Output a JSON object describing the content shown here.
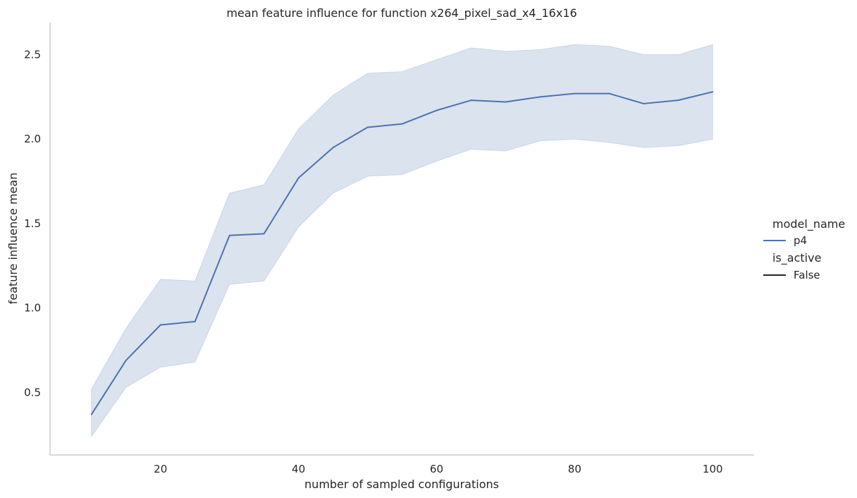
{
  "chart_data": {
    "type": "line",
    "title": "mean feature influence for function x264_pixel_sad_x4_16x16",
    "xlabel": "number of sampled configurations",
    "ylabel": "feature influence mean",
    "x": [
      10,
      15,
      20,
      25,
      30,
      35,
      40,
      45,
      50,
      55,
      60,
      65,
      70,
      75,
      80,
      85,
      90,
      95,
      100
    ],
    "xlim": [
      4,
      106
    ],
    "ylim": [
      0.13,
      2.69
    ],
    "xticks": [
      20,
      40,
      60,
      80,
      100
    ],
    "xtick_labels": [
      "20",
      "40",
      "60",
      "80",
      "100"
    ],
    "yticks": [
      0.5,
      1.0,
      1.5,
      2.0,
      2.5
    ],
    "ytick_labels": [
      "0.5",
      "1.0",
      "1.5",
      "2.0",
      "2.5"
    ],
    "grid": false,
    "legend_placement": "right",
    "series": [
      {
        "name": "p4",
        "color": "#4c72b0",
        "band_color": "#4c72b0",
        "values": [
          0.37,
          0.69,
          0.9,
          0.92,
          1.43,
          1.44,
          1.77,
          1.95,
          2.07,
          2.09,
          2.17,
          2.23,
          2.22,
          2.25,
          2.27,
          2.27,
          2.21,
          2.23,
          2.28
        ],
        "ci_lower": [
          0.24,
          0.53,
          0.65,
          0.68,
          1.14,
          1.16,
          1.48,
          1.68,
          1.78,
          1.79,
          1.87,
          1.94,
          1.93,
          1.99,
          2.0,
          1.98,
          1.95,
          1.96,
          2.0
        ],
        "ci_upper": [
          0.52,
          0.88,
          1.17,
          1.16,
          1.68,
          1.73,
          2.06,
          2.26,
          2.39,
          2.4,
          2.47,
          2.54,
          2.52,
          2.53,
          2.56,
          2.55,
          2.5,
          2.5,
          2.56
        ]
      }
    ],
    "legend": {
      "hue_title": "model_name",
      "hue_items": [
        {
          "label": "p4",
          "color": "#4c72b0"
        }
      ],
      "style_title": "is_active",
      "style_items": [
        {
          "label": "False",
          "color": "#262626"
        }
      ]
    }
  }
}
